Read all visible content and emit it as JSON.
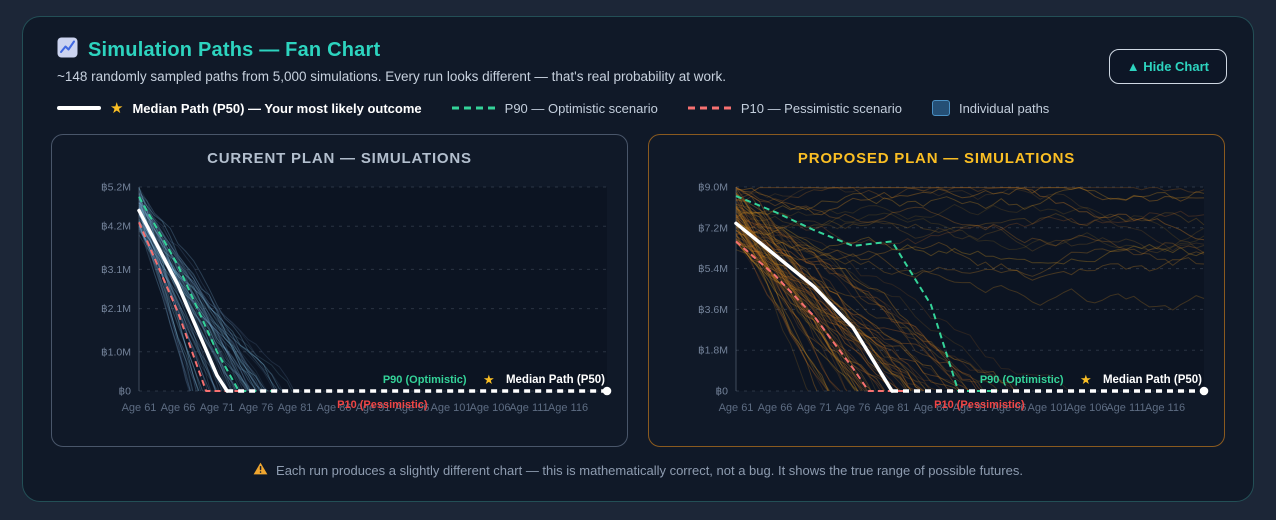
{
  "header": {
    "icon": "chart-increasing",
    "title": "Simulation Paths — Fan Chart",
    "subtitle": "~148 randomly sampled paths from 5,000 simulations. Every run looks different — that's real probability at work.",
    "hide_button_label": "▲ Hide Chart"
  },
  "legend": {
    "median_label": "Median Path (P50) — Your most likely outcome",
    "p90_label": "P90 — Optimistic scenario",
    "p10_label": "P10 — Pessimistic scenario",
    "paths_label": "Individual paths"
  },
  "colors": {
    "accent_teal": "#2dd4bf",
    "median": "#ffffff",
    "p90": "#34d399",
    "p10": "#f87171",
    "gold_star": "#fbbf24",
    "grid": "rgba(148,163,184,0.22)",
    "axis": "rgba(148,163,184,0.38)",
    "y_label": "#74839a",
    "x_label": "#5d6c82",
    "plot_bg": "#0c1422"
  },
  "footer": {
    "note": "Each run produces a slightly different chart — this is mathematically correct, not a bug. It shows the true range of possible futures."
  },
  "chart_data": [
    {
      "type": "line",
      "title": "CURRENT PLAN — SIMULATIONS",
      "title_color": "#b3bfce",
      "border_color": "#49566a",
      "x_tick_ages": [
        61,
        66,
        71,
        76,
        81,
        86,
        91,
        96,
        101,
        106,
        111,
        116
      ],
      "x_tick_labels": [
        "Age 61",
        "Age 66",
        "Age 71",
        "Age 76",
        "Age 81",
        "Age 86",
        "Age 91",
        "Age 96",
        "Age 101",
        "Age 106",
        "Age 111",
        "Age 116"
      ],
      "x_domain": [
        61,
        121
      ],
      "ylim": [
        0,
        5.2
      ],
      "y_tick_values": [
        0,
        1.0,
        2.1,
        3.1,
        4.2,
        5.2
      ],
      "y_tick_labels": [
        "฿0",
        "฿1.0M",
        "฿2.1M",
        "฿3.1M",
        "฿4.2M",
        "฿5.2M"
      ],
      "series": [
        {
          "name": "Median Path (P50)",
          "role": "median",
          "values": [
            4.6,
            2.7,
            0.4,
            0,
            0,
            0,
            0,
            0,
            0,
            0,
            0,
            0
          ],
          "depletes_at_age": 72.3
        },
        {
          "name": "P90 — Optimistic",
          "role": "p90",
          "values": [
            4.95,
            3.2,
            1.0,
            0,
            0,
            0,
            0,
            0,
            0,
            0,
            0,
            0
          ],
          "depletes_at_age": 73.8
        },
        {
          "name": "P10 — Pessimistic",
          "role": "p10",
          "values": [
            4.3,
            2.0,
            0,
            0,
            0,
            0,
            0,
            0,
            0,
            0,
            0,
            0
          ],
          "depletes_at_age": 69.6
        }
      ],
      "annotations": {
        "p90": "P90 (Optimistic)",
        "median_star": "★",
        "median": "Median Path (P50)",
        "p10": "P10 (Pessimistic)"
      },
      "paths": {
        "count": 70,
        "seed": 7,
        "hue": 204,
        "sat": 62,
        "light": 70,
        "alpha": [
          0.09,
          0.3
        ],
        "survive_prob": 0,
        "deplete_age_range": [
          67,
          78
        ],
        "start_range": [
          4.1,
          5.2
        ]
      }
    },
    {
      "type": "line",
      "title": "PROPOSED PLAN — SIMULATIONS",
      "title_color": "#fbbf24",
      "border_color": "#8a5a1f",
      "x_tick_ages": [
        61,
        66,
        71,
        76,
        81,
        86,
        91,
        96,
        101,
        106,
        111,
        116
      ],
      "x_tick_labels": [
        "Age 61",
        "Age 66",
        "Age 71",
        "Age 76",
        "Age 81",
        "Age 86",
        "Age 91",
        "Age 96",
        "Age 101",
        "Age 106",
        "Age 111",
        "Age 116"
      ],
      "x_domain": [
        61,
        121
      ],
      "ylim": [
        0,
        9.0
      ],
      "y_tick_values": [
        0,
        1.8,
        3.6,
        5.4,
        7.2,
        9.0
      ],
      "y_tick_labels": [
        "฿0",
        "฿1.8M",
        "฿3.6M",
        "฿5.4M",
        "฿7.2M",
        "฿9.0M"
      ],
      "series": [
        {
          "name": "Median Path (P50)",
          "role": "median",
          "values": [
            7.4,
            6.0,
            4.6,
            2.8,
            0,
            0,
            0,
            0,
            0,
            0,
            0,
            0
          ],
          "depletes_at_age": 81.0
        },
        {
          "name": "P90 — Optimistic",
          "role": "p90",
          "values": [
            8.6,
            7.9,
            7.1,
            6.4,
            6.6,
            3.8,
            0,
            0,
            0,
            0,
            0,
            0
          ],
          "depletes_at_age": 89.5
        },
        {
          "name": "P10 — Pessimistic",
          "role": "p10",
          "values": [
            6.6,
            5.1,
            3.3,
            1.0,
            0,
            0,
            0,
            0,
            0,
            0,
            0,
            0
          ],
          "depletes_at_age": 78.0
        }
      ],
      "annotations": {
        "p90": "P90 (Optimistic)",
        "median_star": "★",
        "median": "Median Path (P50)",
        "p10": "P10 (Pessimistic)"
      },
      "paths": {
        "count": 80,
        "seed": 21,
        "hue": 33,
        "sat": 72,
        "light": 46,
        "alpha": [
          0.13,
          0.38
        ],
        "survive_prob": 0.22,
        "deplete_age_range": [
          70,
          96
        ],
        "start_range": [
          6.5,
          9.0
        ]
      }
    }
  ]
}
